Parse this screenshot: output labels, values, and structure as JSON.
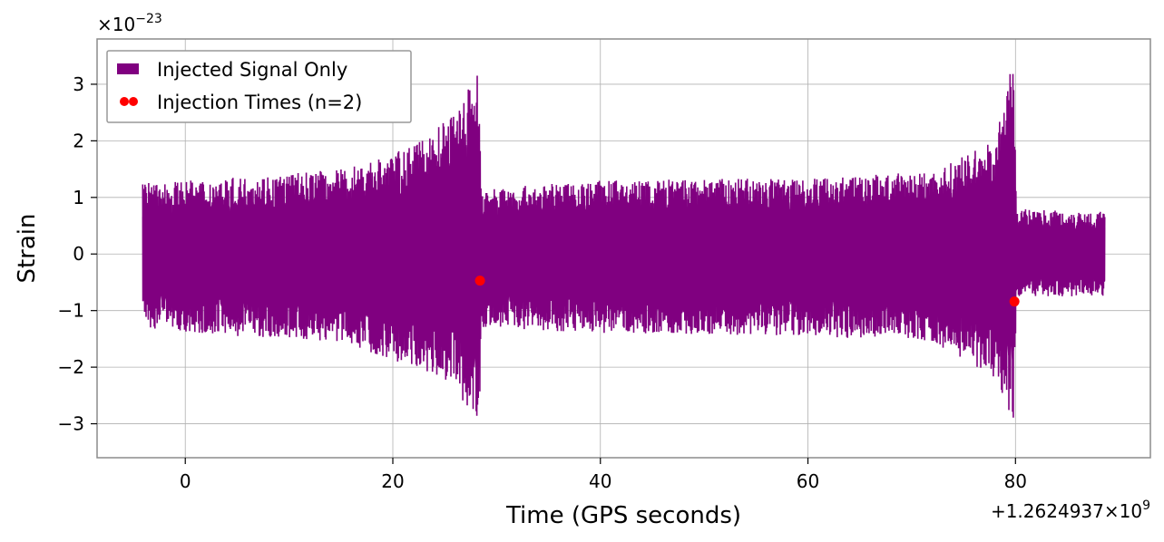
{
  "chart_data": {
    "type": "line",
    "xlabel": "Time (GPS seconds)",
    "ylabel": "Strain",
    "x_offset_label": "+1.2624937×10",
    "x_offset_exponent": "9",
    "y_scale_label": "×10",
    "y_scale_exponent": "−23",
    "xlim": [
      -8.5,
      93
    ],
    "ylim": [
      -3.6,
      3.8
    ],
    "x_ticks": [
      0,
      20,
      40,
      60,
      80
    ],
    "x_tick_labels": [
      "0",
      "20",
      "40",
      "60",
      "80"
    ],
    "y_ticks": [
      -3,
      -2,
      -1,
      0,
      1,
      2,
      3
    ],
    "y_tick_labels": [
      "−3",
      "−2",
      "−1",
      "0",
      "1",
      "2",
      "3"
    ],
    "grid": true,
    "legend_position": "top-left",
    "series": [
      {
        "name": "Injected Signal Only",
        "color": "#800080",
        "x_range": [
          -4.1,
          88.6
        ],
        "baseline_amplitude": 0.8,
        "envelope": [
          {
            "x": -4.1,
            "upper": 1.25,
            "lower": -1.3
          },
          {
            "x": 5,
            "upper": 1.35,
            "lower": -1.45
          },
          {
            "x": 15,
            "upper": 1.5,
            "lower": -1.55
          },
          {
            "x": 22,
            "upper": 1.9,
            "lower": -2.0
          },
          {
            "x": 26,
            "upper": 2.5,
            "lower": -2.3
          },
          {
            "x": 28.3,
            "upper": 3.3,
            "lower": -3.25
          },
          {
            "x": 28.5,
            "upper": 1.15,
            "lower": -1.3
          },
          {
            "x": 40,
            "upper": 1.3,
            "lower": -1.4
          },
          {
            "x": 60,
            "upper": 1.35,
            "lower": -1.45
          },
          {
            "x": 72,
            "upper": 1.45,
            "lower": -1.55
          },
          {
            "x": 78,
            "upper": 2.0,
            "lower": -2.2
          },
          {
            "x": 79.8,
            "upper": 3.45,
            "lower": -2.95
          },
          {
            "x": 80.1,
            "upper": 0.8,
            "lower": -0.75
          },
          {
            "x": 88.6,
            "upper": 0.75,
            "lower": -0.75
          }
        ]
      },
      {
        "name": "Injection Times (n=2)",
        "type": "scatter",
        "color": "#ff0000",
        "points": [
          {
            "x": 28.4,
            "y": -0.47
          },
          {
            "x": 79.9,
            "y": -0.84
          }
        ]
      }
    ]
  }
}
